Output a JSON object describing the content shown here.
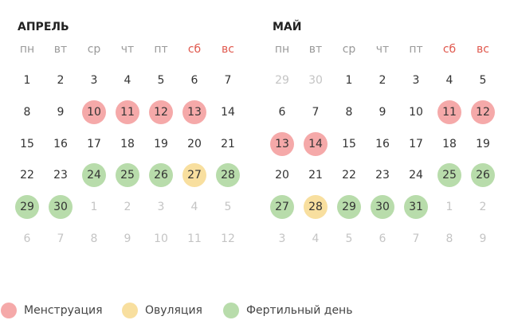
{
  "muted_color": "#c4c4c4",
  "text_color": "#333333",
  "legend": [
    {
      "label": "Менструация",
      "color": "#f5a9a9"
    },
    {
      "label": "Овуляция",
      "color": "#f8df9f"
    },
    {
      "label": "Фертильный день",
      "color": "#b8dcab"
    }
  ],
  "months": [
    {
      "title": "АПРЕЛЬ",
      "weekdays": [
        {
          "text": "пн",
          "color": "#9a9a9a"
        },
        {
          "text": "вт",
          "color": "#9a9a9a"
        },
        {
          "text": "ср",
          "color": "#9a9a9a"
        },
        {
          "text": "чт",
          "color": "#9a9a9a"
        },
        {
          "text": "пт",
          "color": "#9a9a9a"
        },
        {
          "text": "сб",
          "color": "#e0584d"
        },
        {
          "text": "вс",
          "color": "#e0584d"
        }
      ],
      "weeks": [
        [
          {
            "text": "1"
          },
          {
            "text": "2"
          },
          {
            "text": "3"
          },
          {
            "text": "4"
          },
          {
            "text": "5"
          },
          {
            "text": "6"
          },
          {
            "text": "7"
          }
        ],
        [
          {
            "text": "8"
          },
          {
            "text": "9"
          },
          {
            "text": "10",
            "mark": 0
          },
          {
            "text": "11",
            "mark": 0
          },
          {
            "text": "12",
            "mark": 0
          },
          {
            "text": "13",
            "mark": 0
          },
          {
            "text": "14"
          }
        ],
        [
          {
            "text": "15"
          },
          {
            "text": "16"
          },
          {
            "text": "17"
          },
          {
            "text": "18"
          },
          {
            "text": "19"
          },
          {
            "text": "20"
          },
          {
            "text": "21"
          }
        ],
        [
          {
            "text": "22"
          },
          {
            "text": "23"
          },
          {
            "text": "24",
            "mark": 2
          },
          {
            "text": "25",
            "mark": 2
          },
          {
            "text": "26",
            "mark": 2
          },
          {
            "text": "27",
            "mark": 1
          },
          {
            "text": "28",
            "mark": 2
          }
        ],
        [
          {
            "text": "29",
            "mark": 2
          },
          {
            "text": "30",
            "mark": 2
          },
          {
            "text": "1",
            "muted": true
          },
          {
            "text": "2",
            "muted": true
          },
          {
            "text": "3",
            "muted": true
          },
          {
            "text": "4",
            "muted": true
          },
          {
            "text": "5",
            "muted": true
          }
        ],
        [
          {
            "text": "6",
            "muted": true
          },
          {
            "text": "7",
            "muted": true
          },
          {
            "text": "8",
            "muted": true
          },
          {
            "text": "9",
            "muted": true
          },
          {
            "text": "10",
            "muted": true
          },
          {
            "text": "11",
            "muted": true
          },
          {
            "text": "12",
            "muted": true
          }
        ]
      ]
    },
    {
      "title": "МАЙ",
      "weekdays": [
        {
          "text": "пн",
          "color": "#9a9a9a"
        },
        {
          "text": "вт",
          "color": "#9a9a9a"
        },
        {
          "text": "ср",
          "color": "#9a9a9a"
        },
        {
          "text": "чт",
          "color": "#9a9a9a"
        },
        {
          "text": "пт",
          "color": "#9a9a9a"
        },
        {
          "text": "сб",
          "color": "#e0584d"
        },
        {
          "text": "вс",
          "color": "#e0584d"
        }
      ],
      "weeks": [
        [
          {
            "text": "29",
            "muted": true
          },
          {
            "text": "30",
            "muted": true
          },
          {
            "text": "1"
          },
          {
            "text": "2"
          },
          {
            "text": "3"
          },
          {
            "text": "4"
          },
          {
            "text": "5"
          }
        ],
        [
          {
            "text": "6"
          },
          {
            "text": "7"
          },
          {
            "text": "8"
          },
          {
            "text": "9"
          },
          {
            "text": "10"
          },
          {
            "text": "11",
            "mark": 0
          },
          {
            "text": "12",
            "mark": 0
          }
        ],
        [
          {
            "text": "13",
            "mark": 0
          },
          {
            "text": "14",
            "mark": 0
          },
          {
            "text": "15"
          },
          {
            "text": "16"
          },
          {
            "text": "17"
          },
          {
            "text": "18"
          },
          {
            "text": "19"
          }
        ],
        [
          {
            "text": "20"
          },
          {
            "text": "21"
          },
          {
            "text": "22"
          },
          {
            "text": "23"
          },
          {
            "text": "24"
          },
          {
            "text": "25",
            "mark": 2
          },
          {
            "text": "26",
            "mark": 2
          }
        ],
        [
          {
            "text": "27",
            "mark": 2
          },
          {
            "text": "28",
            "mark": 1
          },
          {
            "text": "29",
            "mark": 2
          },
          {
            "text": "30",
            "mark": 2
          },
          {
            "text": "31",
            "mark": 2
          },
          {
            "text": "1",
            "muted": true
          },
          {
            "text": "2",
            "muted": true
          }
        ],
        [
          {
            "text": "3",
            "muted": true
          },
          {
            "text": "4",
            "muted": true
          },
          {
            "text": "5",
            "muted": true
          },
          {
            "text": "6",
            "muted": true
          },
          {
            "text": "7",
            "muted": true
          },
          {
            "text": "8",
            "muted": true
          },
          {
            "text": "9",
            "muted": true
          }
        ]
      ]
    }
  ]
}
